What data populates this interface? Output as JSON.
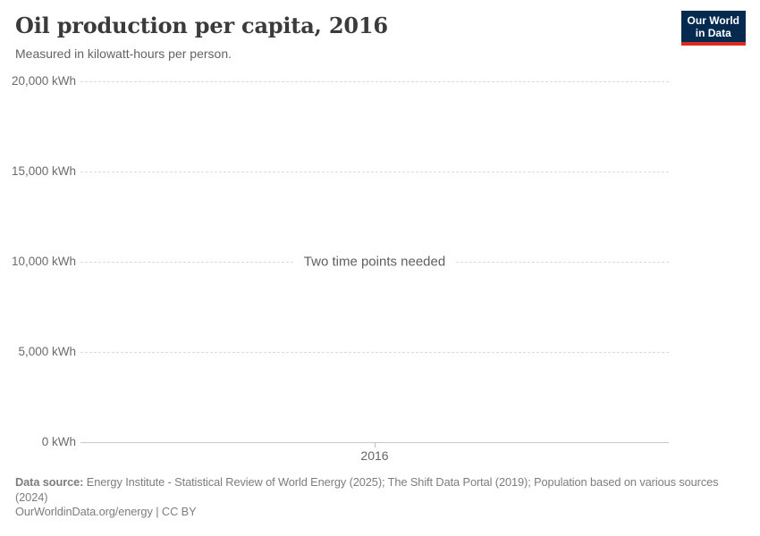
{
  "header": {
    "title": "Oil production per capita, 2016",
    "subtitle": "Measured in kilowatt-hours per person.",
    "logo_line1": "Our World",
    "logo_line2": "in Data"
  },
  "chart_data": {
    "type": "line",
    "title": "Oil production per capita, 2016",
    "subtitle": "Measured in kilowatt-hours per person.",
    "unit": "kWh",
    "series": [],
    "empty_message": "Two time points needed",
    "x_tick_labels": [
      "2016"
    ],
    "y_tick_values": [
      20000,
      15000,
      10000,
      5000,
      0
    ],
    "y_tick_labels": [
      "20,000 kWh",
      "15,000 kWh",
      "10,000 kWh",
      "5,000 kWh",
      "0 kWh"
    ],
    "ylim": [
      0,
      20000
    ],
    "grid": true,
    "legend": false
  },
  "footer": {
    "data_source_label": "Data source:",
    "data_source_lines": [
      "Energy Institute - Statistical Review of World Energy (2025); The Shift Data Portal (2019); Population based on various sources",
      "(2024)"
    ],
    "link_text": "OurWorldinData.org/energy",
    "separator": "|",
    "license": "CC BY"
  },
  "colors": {
    "logo_background": "#042b4f",
    "logo_stripe": "#dc2a20",
    "gridline": "#dcdcdc",
    "axis_line": "#c9c9c9",
    "title_text": "#3b3b3b",
    "muted_text": "#7d7d7d"
  }
}
